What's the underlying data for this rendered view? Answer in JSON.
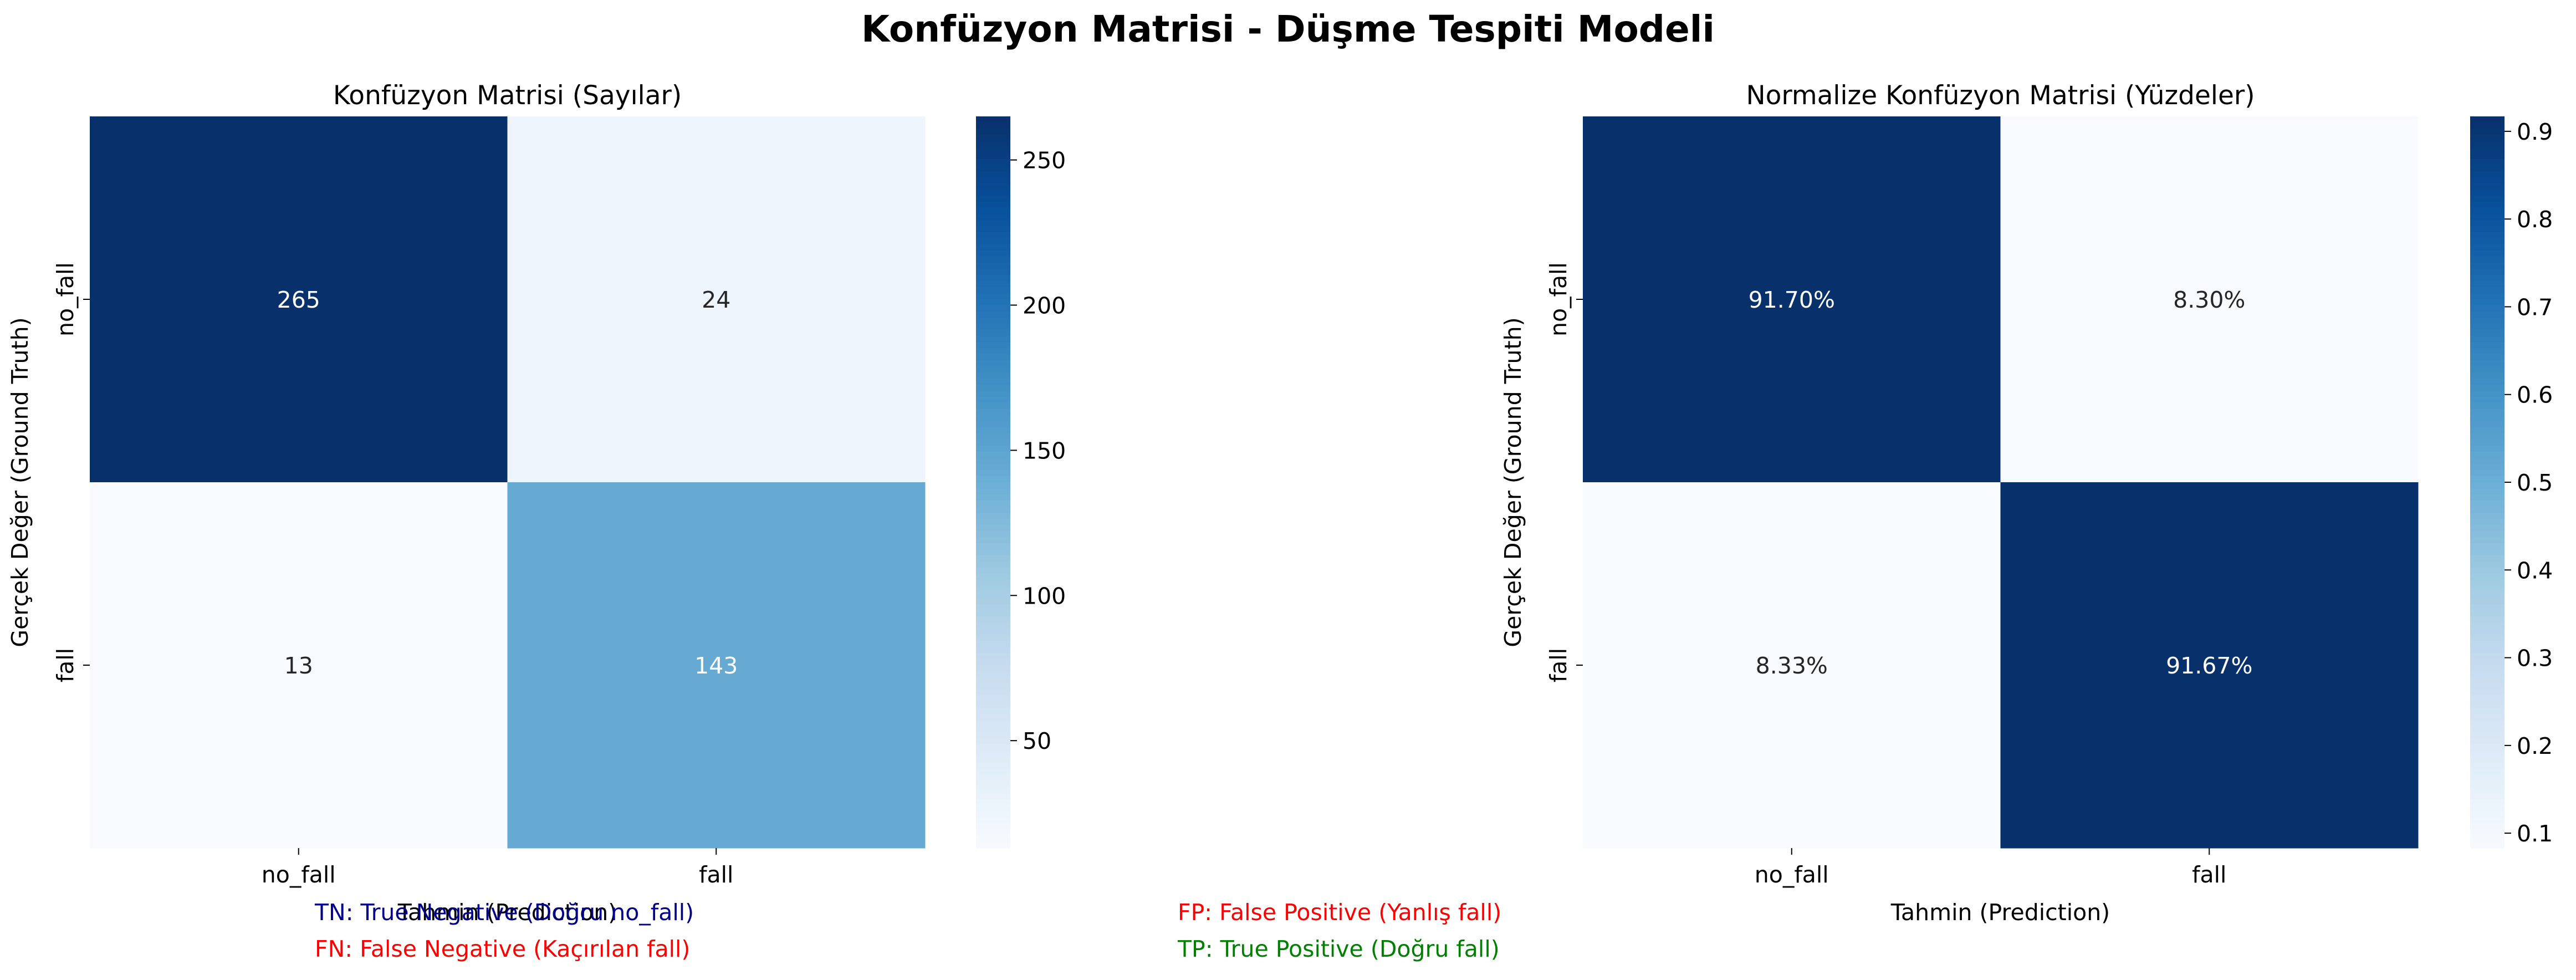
{
  "suptitle": "Konfüzyon Matrisi - Düşme Tespiti Modeli",
  "chart_data": [
    {
      "type": "heatmap",
      "title": "Konfüzyon Matrisi (Sayılar)",
      "xlabel": "Tahmin (Prediction)",
      "ylabel": "Gerçek Değer (Ground Truth)",
      "x_categories": [
        "no_fall",
        "fall"
      ],
      "y_categories": [
        "no_fall",
        "fall"
      ],
      "values": [
        [
          265,
          24
        ],
        [
          13,
          143
        ]
      ],
      "annotations": [
        [
          "265",
          "24"
        ],
        [
          "13",
          "143"
        ]
      ],
      "colormap": "Blues",
      "vmin": 13,
      "vmax": 265,
      "colorbar_ticks": [
        50,
        100,
        150,
        200,
        250
      ],
      "colorbar_labels": [
        "50",
        "100",
        "150",
        "200",
        "250"
      ]
    },
    {
      "type": "heatmap",
      "title": "Normalize Konfüzyon Matrisi (Yüzdeler)",
      "xlabel": "Tahmin (Prediction)",
      "ylabel": "Gerçek Değer (Ground Truth)",
      "x_categories": [
        "no_fall",
        "fall"
      ],
      "y_categories": [
        "no_fall",
        "fall"
      ],
      "values": [
        [
          0.917,
          0.083
        ],
        [
          0.0833,
          0.9167
        ]
      ],
      "annotations": [
        [
          "91.70%",
          "8.30%"
        ],
        [
          "8.33%",
          "91.67%"
        ]
      ],
      "colormap": "Blues",
      "vmin": 0.083,
      "vmax": 0.917,
      "colorbar_ticks": [
        0.1,
        0.2,
        0.3,
        0.4,
        0.5,
        0.6,
        0.7,
        0.8,
        0.9
      ],
      "colorbar_labels": [
        "0.1",
        "0.2",
        "0.3",
        "0.4",
        "0.5",
        "0.6",
        "0.7",
        "0.8",
        "0.9"
      ]
    }
  ],
  "notes": {
    "tn": "TN: True Negative (Doğru no_fall)",
    "fn": "FN: False Negative (Kaçırılan fall)",
    "fp": "FP: False Positive (Yanlış fall)",
    "tp": "TP: True Positive (Doğru fall)",
    "colors": {
      "tn": "#00008b",
      "fn": "#ff0000",
      "fp": "#ff0000",
      "tp": "#008000"
    }
  }
}
